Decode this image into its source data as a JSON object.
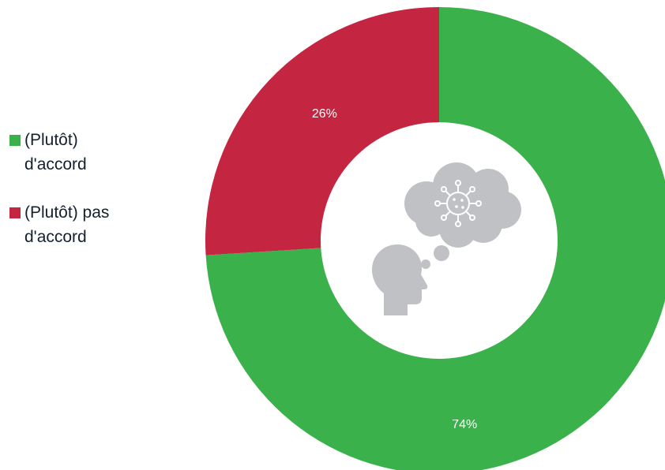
{
  "chart_data": {
    "type": "pie",
    "variant": "donut",
    "categories": [
      "(Plutôt) d'accord",
      "(Plutôt) pas d'accord"
    ],
    "values": [
      74,
      26
    ],
    "unit": "%",
    "data_labels": [
      "74%",
      "26%"
    ],
    "colors": [
      "#3ab14b",
      "#c42641"
    ],
    "legend_position": "left",
    "legend": [
      {
        "lines": [
          "(Plutôt)",
          "d'accord"
        ],
        "color": "#3ab14b"
      },
      {
        "lines": [
          "(Plutôt) pas",
          "d'accord"
        ],
        "color": "#c42641"
      }
    ],
    "center_icon": "person-thinking-virus-icon"
  }
}
